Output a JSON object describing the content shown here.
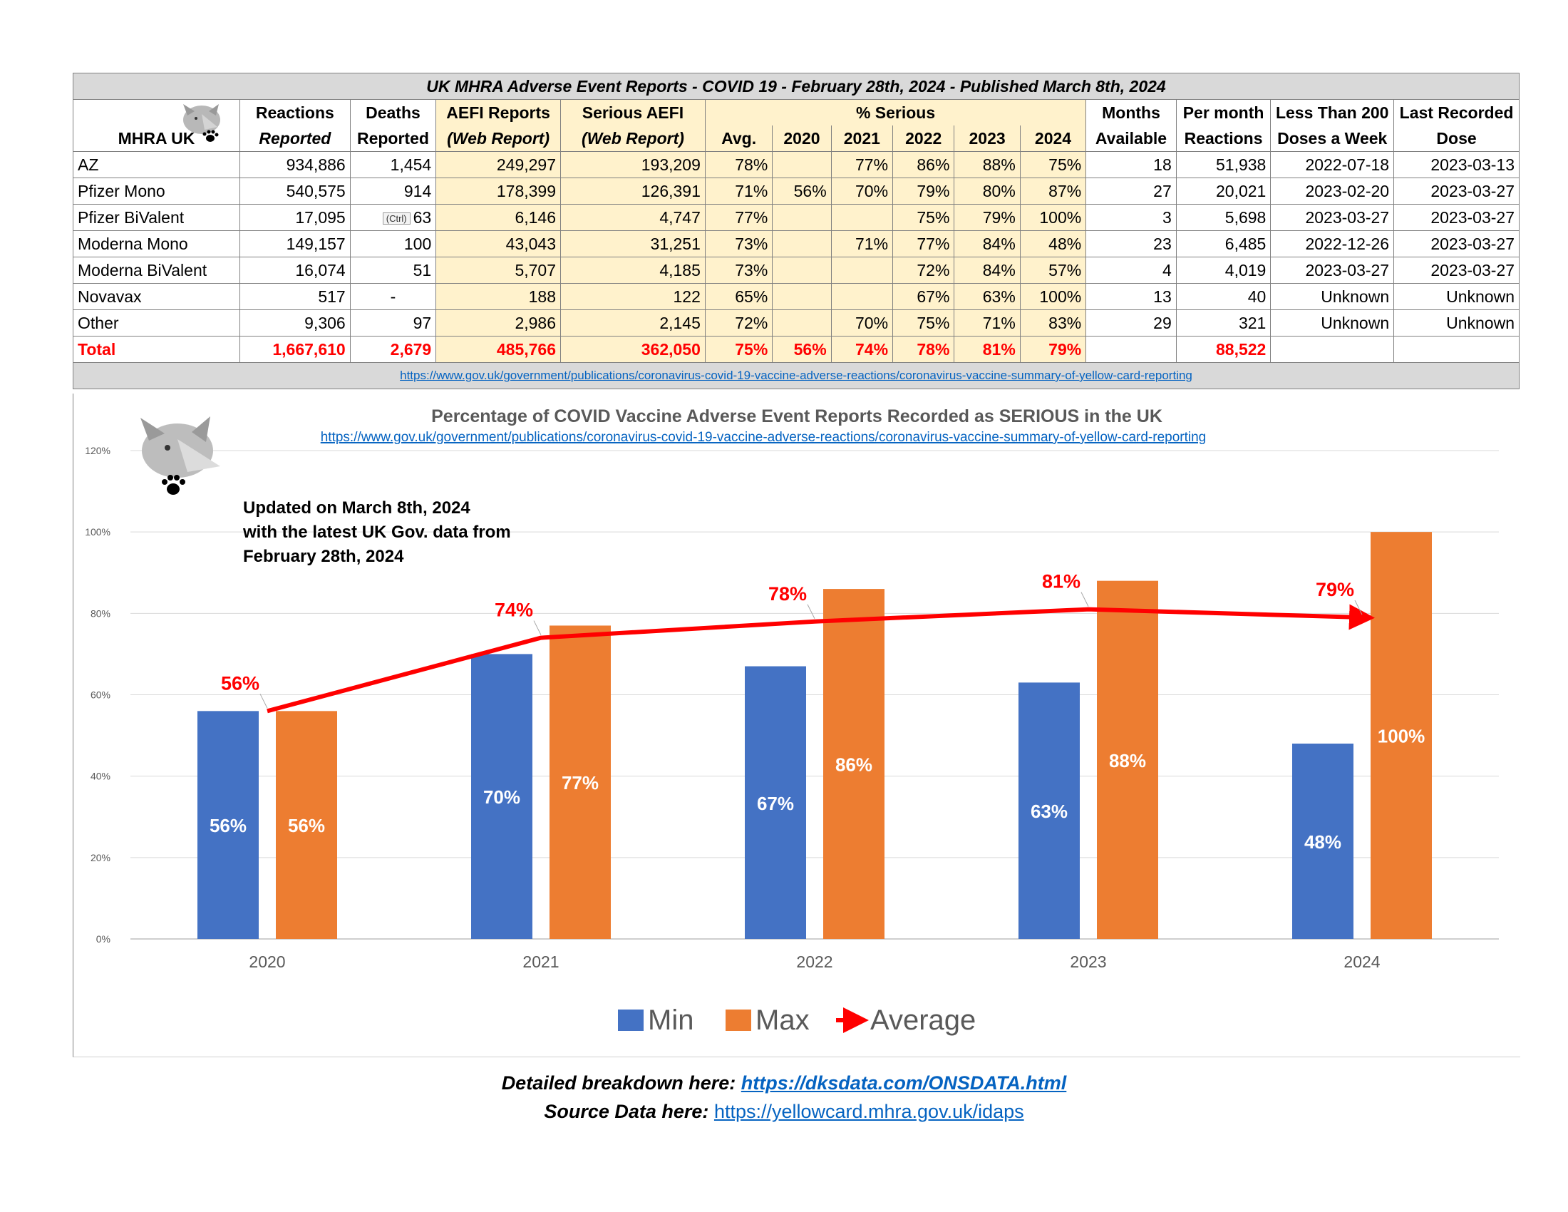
{
  "table": {
    "title": "UK MHRA Adverse Event Reports -  COVID 19 - February 28th, 2024 - Published March 8th, 2024",
    "header": {
      "col0": "MHRA UK",
      "reactions_1": "Reactions",
      "reactions_2": "Reported",
      "deaths_1": "Deaths",
      "deaths_2": "Reported",
      "aefi_1": "AEFI Reports",
      "aefi_2": "(Web Report)",
      "serious_1": "Serious AEFI",
      "serious_2": "(Web Report)",
      "pct_serious": "% Serious",
      "avg": "Avg.",
      "y2020": "2020",
      "y2021": "2021",
      "y2022": "2022",
      "y2023": "2023",
      "y2024": "2024",
      "months_1": "Months",
      "months_2": "Available",
      "permonth_1": "Per month",
      "permonth_2": "Reactions",
      "less_1": "Less Than 200",
      "less_2": "Doses a Week",
      "last_1": "Last Recorded",
      "last_2": "Dose"
    },
    "rows": [
      {
        "name": "AZ",
        "reactions": "934,886",
        "deaths": "1,454",
        "aefi": "249,297",
        "serious": "193,209",
        "avg": "78%",
        "y2020": "",
        "y2021": "77%",
        "y2022": "86%",
        "y2023": "88%",
        "y2024": "75%",
        "months": "18",
        "permonth": "51,938",
        "less": "2022-07-18",
        "last": "2023-03-13"
      },
      {
        "name": "Pfizer Mono",
        "reactions": "540,575",
        "deaths": "914",
        "aefi": "178,399",
        "serious": "126,391",
        "avg": "71%",
        "y2020": "56%",
        "y2021": "70%",
        "y2022": "79%",
        "y2023": "80%",
        "y2024": "87%",
        "months": "27",
        "permonth": "20,021",
        "less": "2023-02-20",
        "last": "2023-03-27"
      },
      {
        "name": "Pfizer BiValent",
        "reactions": "17,095",
        "deaths": "63",
        "aefi": "6,146",
        "serious": "4,747",
        "avg": "77%",
        "y2020": "",
        "y2021": "",
        "y2022": "75%",
        "y2023": "79%",
        "y2024": "100%",
        "months": "3",
        "permonth": "5,698",
        "less": "2023-03-27",
        "last": "2023-03-27"
      },
      {
        "name": "Moderna Mono",
        "reactions": "149,157",
        "deaths": "100",
        "aefi": "43,043",
        "serious": "31,251",
        "avg": "73%",
        "y2020": "",
        "y2021": "71%",
        "y2022": "77%",
        "y2023": "84%",
        "y2024": "48%",
        "months": "23",
        "permonth": "6,485",
        "less": "2022-12-26",
        "last": "2023-03-27"
      },
      {
        "name": "Moderna BiValent",
        "reactions": "16,074",
        "deaths": "51",
        "aefi": "5,707",
        "serious": "4,185",
        "avg": "73%",
        "y2020": "",
        "y2021": "",
        "y2022": "72%",
        "y2023": "84%",
        "y2024": "57%",
        "months": "4",
        "permonth": "4,019",
        "less": "2023-03-27",
        "last": "2023-03-27"
      },
      {
        "name": "Novavax",
        "reactions": "517",
        "deaths": "-",
        "aefi": "188",
        "serious": "122",
        "avg": "65%",
        "y2020": "",
        "y2021": "",
        "y2022": "67%",
        "y2023": "63%",
        "y2024": "100%",
        "months": "13",
        "permonth": "40",
        "less": "Unknown",
        "last": "Unknown"
      },
      {
        "name": "Other",
        "reactions": "9,306",
        "deaths": "97",
        "aefi": "2,986",
        "serious": "2,145",
        "avg": "72%",
        "y2020": "",
        "y2021": "70%",
        "y2022": "75%",
        "y2023": "71%",
        "y2024": "83%",
        "months": "29",
        "permonth": "321",
        "less": "Unknown",
        "last": "Unknown"
      }
    ],
    "total": {
      "name": "Total",
      "reactions": "1,667,610",
      "deaths": "2,679",
      "aefi": "485,766",
      "serious": "362,050",
      "avg": "75%",
      "y2020": "56%",
      "y2021": "74%",
      "y2022": "78%",
      "y2023": "81%",
      "y2024": "79%",
      "permonth": "88,522"
    },
    "ctrl_label": "(Ctrl)",
    "source_link": "https://www.gov.uk/government/publications/coronavirus-covid-19-vaccine-adverse-reactions/coronavirus-vaccine-summary-of-yellow-card-reporting"
  },
  "chart_data": {
    "type": "bar",
    "title": "Percentage of COVID Vaccine Adverse Event Reports Recorded as SERIOUS in the UK",
    "subtitle_link": "https://www.gov.uk/government/publications/coronavirus-covid-19-vaccine-adverse-reactions/coronavirus-vaccine-summary-of-yellow-card-reporting",
    "annotation": [
      "Updated on March 8th, 2024",
      "with the latest UK Gov. data from",
      "February 28th, 2024"
    ],
    "categories": [
      "2020",
      "2021",
      "2022",
      "2023",
      "2024"
    ],
    "series": [
      {
        "name": "Min",
        "type": "bar",
        "color": "#4472c4",
        "values": [
          56,
          70,
          67,
          63,
          48
        ],
        "labels": [
          "56%",
          "70%",
          "67%",
          "63%",
          "48%"
        ]
      },
      {
        "name": "Max",
        "type": "bar",
        "color": "#ed7d31",
        "values": [
          56,
          77,
          86,
          88,
          100
        ],
        "labels": [
          "56%",
          "77%",
          "86%",
          "88%",
          "100%"
        ]
      },
      {
        "name": "Average",
        "type": "line",
        "color": "#ff0000",
        "values": [
          56,
          74,
          78,
          81,
          79
        ],
        "labels": [
          "56%",
          "74%",
          "78%",
          "81%",
          "79%"
        ]
      }
    ],
    "yticks": [
      "0%",
      "20%",
      "40%",
      "60%",
      "80%",
      "100%",
      "120%"
    ],
    "ylim": [
      0,
      120
    ],
    "legend_position": "bottom",
    "grid": true
  },
  "footer": {
    "line1_label": "Detailed breakdown here: ",
    "line1_link": "https://dksdata.com/ONSDATA.html",
    "line2_label": "Source Data here: ",
    "line2_link": "https://yellowcard.mhra.gov.uk/idaps"
  }
}
